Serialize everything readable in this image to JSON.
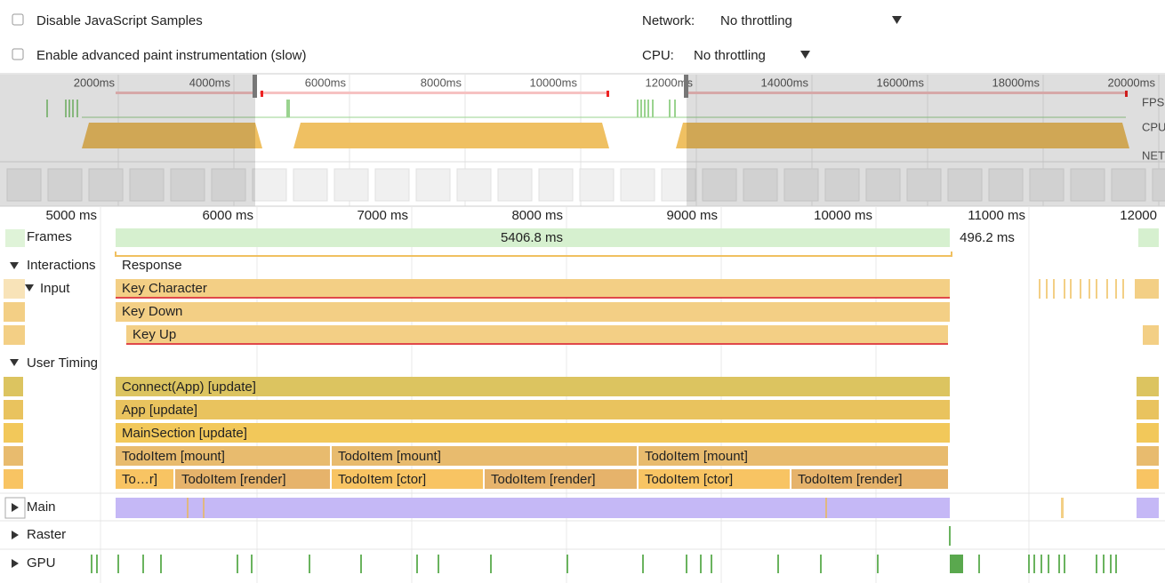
{
  "toolbar": {
    "disable_js_samples": "Disable JavaScript Samples",
    "advanced_paint": "Enable advanced paint instrumentation (slow)",
    "network_label": "Network:",
    "network_value": "No throttling",
    "cpu_label": "CPU:",
    "cpu_value": "No throttling"
  },
  "overview": {
    "ticks": [
      "2000ms",
      "4000ms",
      "6000ms",
      "8000ms",
      "10000ms",
      "12000ms",
      "14000ms",
      "16000ms",
      "18000ms",
      "20000ms"
    ],
    "tracks": [
      "FPS",
      "CPU",
      "NET"
    ]
  },
  "timeline": {
    "ticks": [
      "5000 ms",
      "6000 ms",
      "7000 ms",
      "8000 ms",
      "9000 ms",
      "10000 ms",
      "11000 ms",
      "12000"
    ],
    "frames": {
      "label": "Frames",
      "durations": [
        "5406.8 ms",
        "496.2 ms"
      ]
    },
    "interactions": {
      "label": "Interactions",
      "response": "Response",
      "input": {
        "label": "Input",
        "events": [
          "Key Character",
          "Key Down",
          "Key Up"
        ]
      }
    },
    "user_timing": {
      "label": "User Timing",
      "rows": [
        [
          "Connect(App) [update]"
        ],
        [
          "App [update]"
        ],
        [
          "MainSection [update]"
        ],
        [
          "TodoItem [mount]",
          "TodoItem [mount]",
          "TodoItem [mount]"
        ],
        [
          "To…r]",
          "TodoItem [render]",
          "TodoItem [ctor]",
          "TodoItem [render]",
          "TodoItem [ctor]",
          "TodoItem [render]"
        ]
      ]
    },
    "threads": [
      "Main",
      "Raster",
      "GPU"
    ]
  }
}
